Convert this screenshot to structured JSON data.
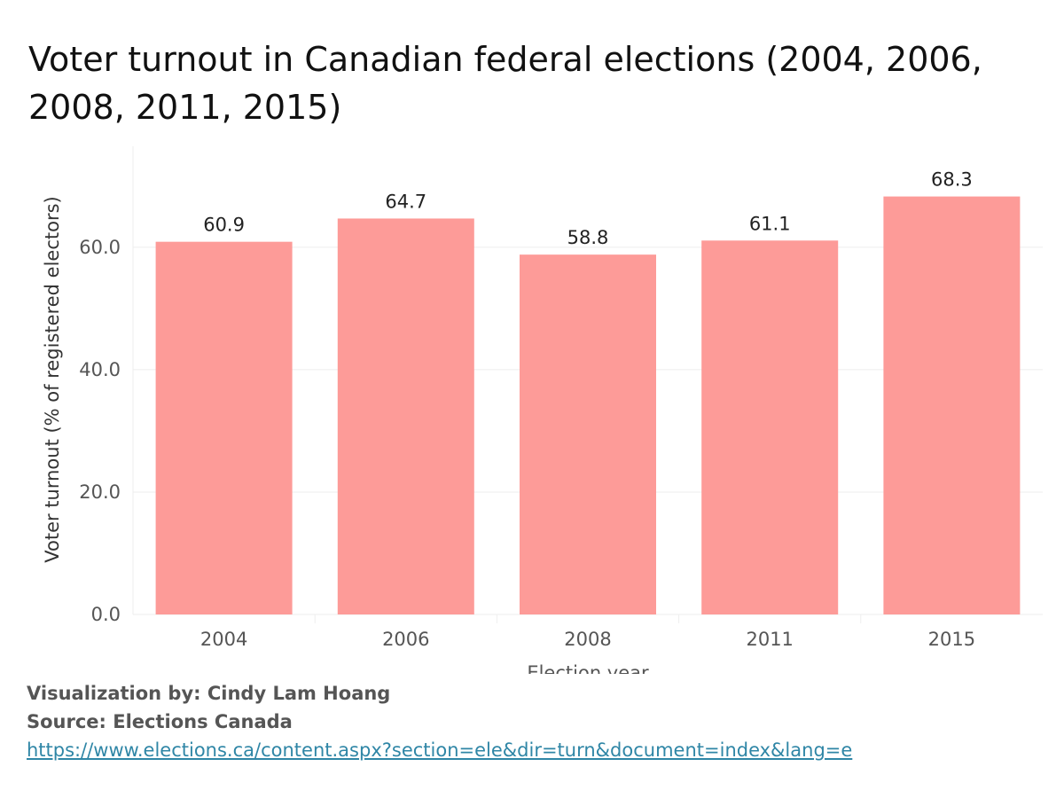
{
  "title": "Voter turnout in Canadian federal elections (2004, 2006, 2008, 2011, 2015)",
  "credits": {
    "visualization": "Visualization by: Cindy Lam Hoang",
    "source": "Source: Elections Canada",
    "url": "https://www.elections.ca/content.aspx?section=ele&dir=turn&document=index&lang=e"
  },
  "colors": {
    "bar": "#fd9b98",
    "grid": "#eeeeee",
    "axis_text": "#555555",
    "label_text": "#222222",
    "link": "#2f86a6"
  },
  "chart_data": {
    "type": "bar",
    "categories": [
      "2004",
      "2006",
      "2008",
      "2011",
      "2015"
    ],
    "values": [
      60.9,
      64.7,
      58.8,
      61.1,
      68.3
    ],
    "data_labels": [
      "60.9",
      "64.7",
      "58.8",
      "61.1",
      "68.3"
    ],
    "yticks": [
      0,
      20,
      40,
      60
    ],
    "ytick_labels": [
      "0.0",
      "20.0",
      "40.0",
      "60.0"
    ],
    "ylim": [
      0,
      76.5
    ],
    "xlabel": "Election year",
    "ylabel": "Voter turnout (% of registered electors)",
    "grid": true,
    "legend": "none"
  }
}
